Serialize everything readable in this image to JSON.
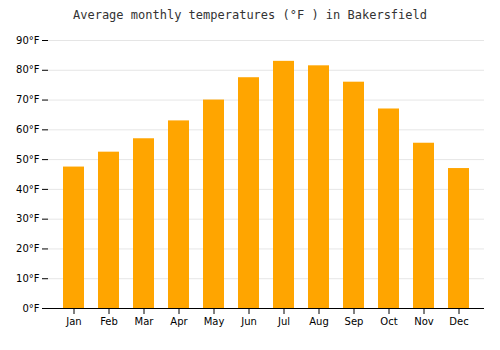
{
  "chart_data": {
    "type": "bar",
    "title": "Average monthly temperatures (°F ) in Bakersfield",
    "categories": [
      "Jan",
      "Feb",
      "Mar",
      "Apr",
      "May",
      "Jun",
      "Jul",
      "Aug",
      "Sep",
      "Oct",
      "Nov",
      "Dec"
    ],
    "values": [
      47.5,
      52.5,
      57,
      63,
      70,
      77.5,
      83,
      81.5,
      76,
      67,
      55.5,
      47
    ],
    "color": "#FFA500",
    "ylim": [
      0,
      90
    ],
    "yticks": [
      {
        "value": 0,
        "label": "0°F"
      },
      {
        "value": 10,
        "label": "10°F"
      },
      {
        "value": 20,
        "label": "20°F"
      },
      {
        "value": 30,
        "label": "30°F"
      },
      {
        "value": 40,
        "label": "40°F"
      },
      {
        "value": 50,
        "label": "50°F"
      },
      {
        "value": 60,
        "label": "60°F"
      },
      {
        "value": 70,
        "label": "70°F"
      },
      {
        "value": 80,
        "label": "80°F"
      },
      {
        "value": 90,
        "label": "90°F"
      }
    ],
    "grid": true
  }
}
